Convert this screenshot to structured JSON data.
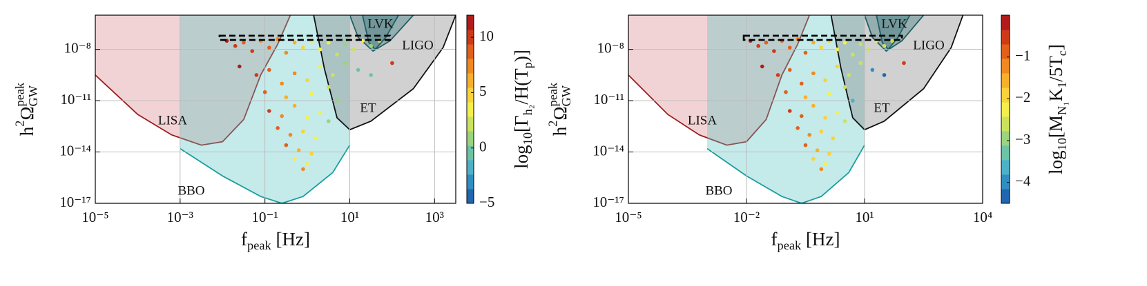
{
  "chart_data": [
    {
      "type": "scatter",
      "log_x": true,
      "log_y": true,
      "grid": true,
      "xlabel": [
        {
          "text": "f"
        },
        {
          "text": "peak",
          "sub": true
        },
        {
          "text": " [Hz]"
        }
      ],
      "ylabel": [
        {
          "text": "h"
        },
        {
          "text": "2",
          "sup": true
        },
        {
          "text": "Ω"
        },
        {
          "text": "peak",
          "sup": true
        },
        {
          "text": "GW",
          "sub": true,
          "back": true
        }
      ],
      "xlim": [
        1e-05,
        3162
      ],
      "ylim": [
        1e-17,
        1e-06
      ],
      "xticks": [
        {
          "value": 1e-05,
          "label": "10⁻⁵"
        },
        {
          "value": 0.001,
          "label": "10⁻³"
        },
        {
          "value": 0.1,
          "label": "10⁻¹"
        },
        {
          "value": 10,
          "label": "10¹"
        },
        {
          "value": 1000,
          "label": "10³"
        }
      ],
      "yticks": [
        {
          "value": 1e-17,
          "label": "10⁻¹⁷"
        },
        {
          "value": 1e-14,
          "label": "10⁻¹⁴"
        },
        {
          "value": 1e-11,
          "label": "10⁻¹¹"
        },
        {
          "value": 1e-08,
          "label": "10⁻⁸"
        }
      ],
      "colormap": [
        "#2166b0",
        "#2f8fc2",
        "#4db1c7",
        "#6cc4a6",
        "#9ad47c",
        "#cbe35c",
        "#f3ef4c",
        "#f8d33a",
        "#f7b02c",
        "#f08a20",
        "#e2601a",
        "#cf3a16",
        "#b21b1b"
      ],
      "colorbar": {
        "label": [
          {
            "text": "log"
          },
          {
            "text": "10",
            "sub": true
          },
          {
            "text": "[Γ"
          },
          {
            "text": "h₂",
            "sub": true
          },
          {
            "text": "/H(T"
          },
          {
            "text": "p",
            "sub": true
          },
          {
            "text": ")]"
          }
        ],
        "lim": [
          -5,
          12
        ],
        "ticks": [
          {
            "value": -5,
            "label": "−5"
          },
          0,
          5,
          10
        ]
      },
      "regions": [
        {
          "name": "LISA",
          "color": "#9e1b1b",
          "fill": "#d98288",
          "x": [
            1e-05,
            0.0001,
            0.000631,
            0.00316,
            0.01,
            0.0316,
            0.0794,
            0.2,
            0.398
          ],
          "y": [
            3.16e-10,
            1.58e-12,
            1e-13,
            2.51e-14,
            3.98e-14,
            7.94e-13,
            3.16e-10,
            2e-08,
            1e-06
          ]
        },
        {
          "name": "BBO",
          "color": "#1a9ea0",
          "fill": "#58c4c4",
          "x": [
            0.001,
            0.01,
            0.0794,
            0.251,
            0.794,
            3.98,
            10
          ],
          "y": [
            1.58e-14,
            3.98e-16,
            2.51e-17,
            1e-17,
            2.51e-17,
            6.31e-16,
            2.51e-14
          ]
        },
        {
          "name": "ET",
          "color": "#111111",
          "fill": "#7a7a7a",
          "x": [
            1.41,
            2.51,
            5.01,
            10,
            31.6,
            316,
            1585,
            3162
          ],
          "y": [
            1e-06,
            7.94e-10,
            1e-12,
            2e-13,
            6.31e-13,
            5.01e-11,
            1.26e-08,
            1e-06
          ]
        },
        {
          "name": "LIGO",
          "color": "#1f5f63",
          "fill": "#2a6e73",
          "x": [
            10,
            15.8,
            35.5,
            89.1,
            316
          ],
          "y": [
            1e-06,
            5.01e-08,
            7.94e-09,
            3.16e-08,
            1e-06
          ]
        },
        {
          "name": "LVK",
          "color": "#1f5f63",
          "fill": "#2a6e73",
          "x": [
            20,
            28.2,
            39.8,
            70.8,
            141
          ],
          "y": [
            1e-06,
            2.51e-08,
            1e-08,
            5.01e-08,
            1e-06
          ]
        }
      ],
      "band": {
        "x": [
          0.00851,
          89.1,
          89.1,
          0.00851
        ],
        "y": [
          6.31e-08,
          6.31e-08,
          3.55e-08,
          3.55e-08
        ]
      },
      "x": [
        0.0126,
        0.02,
        0.0316,
        0.0501,
        0.0794,
        0.126,
        0.2,
        0.316,
        0.501,
        0.794,
        1.26,
        2.0,
        3.16,
        5.01,
        7.94,
        12.6,
        20,
        31.6,
        50.1,
        0.0251,
        0.0631,
        0.126,
        0.251,
        0.501,
        1,
        2.0,
        3.98,
        7.94,
        15.8,
        0.1,
        0.316,
        1.26,
        3.16,
        5.01,
        31.6,
        100,
        0.126,
        0.251,
        0.501,
        1,
        2.0,
        3.16,
        0.2,
        0.398,
        0.794,
        1.58,
        0.316,
        0.631,
        1.26,
        0.501,
        1,
        0.794
      ],
      "y": [
        3.16e-08,
        1.58e-08,
        2.51e-08,
        7.94e-09,
        3.16e-08,
        1.26e-08,
        3.98e-08,
        6.31e-09,
        2.51e-08,
        1.26e-08,
        3.16e-08,
        1e-08,
        2.51e-08,
        5.01e-09,
        2e-08,
        1e-08,
        3.16e-08,
        1.58e-08,
        3.16e-08,
        1e-09,
        3.16e-10,
        6.31e-10,
        1e-10,
        3.98e-10,
        1.58e-10,
        1e-09,
        3.16e-10,
        1.58e-09,
        6.31e-10,
        3.16e-11,
        1.58e-11,
        2.51e-11,
        6.31e-11,
        1e-11,
        3.16e-10,
        1.58e-09,
        2.51e-12,
        1.26e-12,
        5.01e-12,
        1e-12,
        2e-12,
        6.31e-13,
        2.51e-13,
        1e-13,
        1.58e-13,
        6.31e-14,
        2.51e-14,
        1.26e-14,
        7.94e-15,
        3.98e-15,
        2e-15,
        1e-15
      ],
      "c": [
        11,
        10,
        9,
        10,
        8,
        9,
        7,
        8,
        6,
        5,
        4,
        3,
        3,
        2,
        1,
        2,
        3,
        1,
        2,
        11,
        10,
        9,
        8,
        7,
        5,
        4,
        2,
        1,
        0,
        9,
        6,
        3,
        2,
        1,
        -1,
        10,
        10,
        8,
        6,
        4,
        3,
        1,
        9,
        7,
        5,
        4,
        9,
        6,
        5,
        4,
        3,
        7
      ]
    },
    {
      "type": "scatter",
      "log_x": true,
      "log_y": true,
      "grid": true,
      "xlabel": [
        {
          "text": "f"
        },
        {
          "text": "peak",
          "sub": true
        },
        {
          "text": " [Hz]"
        }
      ],
      "ylabel": [
        {
          "text": "h"
        },
        {
          "text": "2",
          "sup": true
        },
        {
          "text": "Ω"
        },
        {
          "text": "peak",
          "sup": true
        },
        {
          "text": "GW",
          "sub": true,
          "back": true
        }
      ],
      "xlim": [
        1e-05,
        10000.0
      ],
      "ylim": [
        1e-17,
        1e-06
      ],
      "xticks": [
        {
          "value": 1e-05,
          "label": "10⁻⁵"
        },
        {
          "value": 0.01,
          "label": "10⁻²"
        },
        {
          "value": 10,
          "label": "10¹"
        },
        {
          "value": 10000.0,
          "label": "10⁴"
        }
      ],
      "yticks": [
        {
          "value": 1e-17,
          "label": "10⁻¹⁷"
        },
        {
          "value": 1e-14,
          "label": "10⁻¹⁴"
        },
        {
          "value": 1e-11,
          "label": "10⁻¹¹"
        },
        {
          "value": 1e-08,
          "label": "10⁻⁸"
        }
      ],
      "colormap": [
        "#2166b0",
        "#2f8fc2",
        "#4db1c7",
        "#6cc4a6",
        "#9ad47c",
        "#cbe35c",
        "#f3ef4c",
        "#f8d33a",
        "#f7b02c",
        "#f08a20",
        "#e2601a",
        "#cf3a16",
        "#b21b1b"
      ],
      "colorbar": {
        "label": [
          {
            "text": "log"
          },
          {
            "text": "10",
            "sub": true
          },
          {
            "text": "[M"
          },
          {
            "text": "N₁",
            "sub": true
          },
          {
            "text": "K"
          },
          {
            "text": "1",
            "sub": true
          },
          {
            "text": "/5T"
          },
          {
            "text": "c",
            "sub": true
          },
          {
            "text": "]"
          }
        ],
        "lim": [
          -4.5,
          0
        ],
        "ticks": [
          {
            "value": -4,
            "label": "−4"
          },
          {
            "value": -3,
            "label": "−3"
          },
          {
            "value": -2,
            "label": "−2"
          },
          {
            "value": -1,
            "label": "−1"
          }
        ]
      },
      "regions": [
        {
          "name": "LISA",
          "color": "#9e1b1b",
          "fill": "#d98288",
          "x": [
            1e-05,
            0.0001,
            0.000631,
            0.00316,
            0.01,
            0.0316,
            0.0794,
            0.2,
            0.398
          ],
          "y": [
            3.16e-10,
            1.58e-12,
            1e-13,
            2.51e-14,
            3.98e-14,
            7.94e-13,
            3.16e-10,
            2e-08,
            1e-06
          ]
        },
        {
          "name": "BBO",
          "color": "#1a9ea0",
          "fill": "#58c4c4",
          "x": [
            0.001,
            0.01,
            0.0794,
            0.251,
            0.794,
            3.98,
            10
          ],
          "y": [
            1.58e-14,
            3.98e-16,
            2.51e-17,
            1e-17,
            2.51e-17,
            6.31e-16,
            2.51e-14
          ]
        },
        {
          "name": "ET",
          "color": "#111111",
          "fill": "#7a7a7a",
          "x": [
            1.41,
            2.51,
            5.01,
            10,
            31.6,
            316,
            1585,
            3162
          ],
          "y": [
            1e-06,
            7.94e-10,
            1e-12,
            2e-13,
            6.31e-13,
            5.01e-11,
            1.26e-08,
            1e-06
          ]
        },
        {
          "name": "LIGO",
          "color": "#1f5f63",
          "fill": "#2a6e73",
          "x": [
            10,
            15.8,
            35.5,
            89.1,
            316
          ],
          "y": [
            1e-06,
            5.01e-08,
            7.94e-09,
            3.16e-08,
            1e-06
          ]
        },
        {
          "name": "LVK",
          "color": "#1f5f63",
          "fill": "#2a6e73",
          "x": [
            20,
            28.2,
            39.8,
            70.8,
            141
          ],
          "y": [
            1e-06,
            2.51e-08,
            1e-08,
            5.01e-08,
            1e-06
          ]
        }
      ],
      "band": {
        "x": [
          0.00851,
          89.1,
          89.1,
          0.00851
        ],
        "y": [
          6.31e-08,
          6.31e-08,
          3.55e-08,
          3.55e-08
        ]
      },
      "x": [
        0.0126,
        0.02,
        0.0316,
        0.0501,
        0.0794,
        0.126,
        0.2,
        0.316,
        0.501,
        0.794,
        1.26,
        2.0,
        3.16,
        5.01,
        7.94,
        12.6,
        20,
        31.6,
        50.1,
        0.0251,
        0.0631,
        0.126,
        0.251,
        0.501,
        1,
        2.0,
        3.98,
        7.94,
        15.8,
        0.1,
        0.316,
        1.26,
        3.16,
        5.01,
        31.6,
        100,
        0.126,
        0.251,
        0.501,
        1,
        2.0,
        3.16,
        0.2,
        0.398,
        0.794,
        1.58,
        0.316,
        0.631,
        1.26,
        0.501,
        1,
        0.794
      ],
      "y": [
        3.16e-08,
        1.58e-08,
        2.51e-08,
        7.94e-09,
        3.16e-08,
        1.26e-08,
        3.98e-08,
        6.31e-09,
        2.51e-08,
        1.26e-08,
        3.16e-08,
        1e-08,
        2.51e-08,
        5.01e-09,
        2e-08,
        1e-08,
        3.16e-08,
        1.58e-08,
        3.16e-08,
        1e-09,
        3.16e-10,
        6.31e-10,
        1e-10,
        3.98e-10,
        1.58e-10,
        1e-09,
        3.16e-10,
        1.58e-09,
        6.31e-10,
        3.16e-11,
        1.58e-11,
        2.51e-11,
        6.31e-11,
        1e-11,
        3.16e-10,
        1.58e-09,
        2.51e-12,
        1.26e-12,
        5.01e-12,
        1e-12,
        2e-12,
        6.31e-13,
        2.51e-13,
        1e-13,
        1.58e-13,
        6.31e-14,
        2.51e-14,
        1.26e-14,
        7.94e-15,
        3.98e-15,
        2e-15,
        1e-15
      ],
      "c": [
        -0.25,
        -0.5,
        -0.75,
        -0.5,
        -1,
        -0.75,
        -1.25,
        -1,
        -1.5,
        -1.75,
        -2,
        -2.25,
        -2.25,
        -2.5,
        -2.75,
        -2.5,
        -2.25,
        -2.75,
        -2.5,
        -0.25,
        -0.5,
        -0.75,
        -1,
        -1.25,
        -1.75,
        -2,
        -2.5,
        -2.75,
        -4,
        -0.75,
        -1.5,
        -2.25,
        -2.5,
        -3.6,
        -4.2,
        -0.5,
        -0.5,
        -1,
        -1.5,
        -2,
        -2.25,
        -2.75,
        -0.75,
        -1.25,
        -1.75,
        -2,
        -0.75,
        -1.5,
        -1.75,
        -2,
        -2.25,
        -1.25
      ]
    }
  ]
}
